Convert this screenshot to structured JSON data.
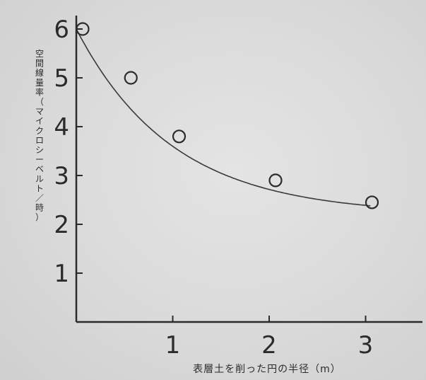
{
  "chart_data": {
    "type": "scatter",
    "title": "",
    "xlabel": "表層土を削った円の半径（m）",
    "ylabel_lines": [
      "空間線量率",
      "（マイクロシーベルト／時）"
    ],
    "xlim": [
      0,
      3.3
    ],
    "ylim": [
      0,
      6.3
    ],
    "xticks": [
      1,
      2,
      3
    ],
    "yticks": [
      1,
      2,
      3,
      4,
      5,
      6
    ],
    "grid": false,
    "legend": "none",
    "points": [
      {
        "x": 0,
        "y": 6.0
      },
      {
        "x": 0.5,
        "y": 5.0
      },
      {
        "x": 1.0,
        "y": 3.8
      },
      {
        "x": 2.0,
        "y": 2.9
      },
      {
        "x": 3.0,
        "y": 2.45
      }
    ],
    "fit_curve": {
      "y0": 6.0,
      "y_inf": 2.2,
      "k": 1.0
    }
  },
  "colors": {
    "ink": "#2b2b2b",
    "background": "#dadada"
  }
}
